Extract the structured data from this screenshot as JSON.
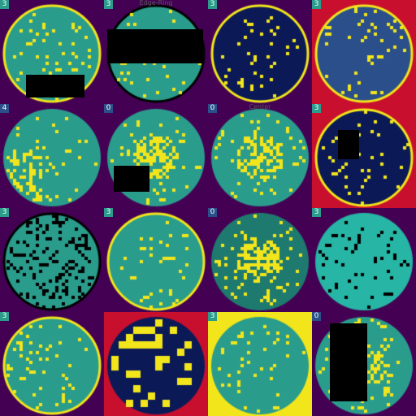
{
  "colors": {
    "purple": "#440154",
    "navy": "#0b1a57",
    "blue": "#2a4f8a",
    "teal": "#2a9c8c",
    "teal_dark": "#1e7a6e",
    "cyan": "#27b5a5",
    "yellow": "#f2e51c",
    "red": "#c8102e",
    "black": "#000000",
    "badge_teal": "#21a08a",
    "badge_blue": "#1a48c8"
  },
  "tiles": [
    {
      "badge": "3",
      "badge_color": "teal",
      "caption": "",
      "bg": "purple",
      "wafer": "teal",
      "defect": "yellow",
      "style": "sparse",
      "ring": "yellow"
    },
    {
      "badge": "3",
      "badge_color": "teal",
      "caption": "Edge-Ring",
      "bg": "purple",
      "wafer": "teal",
      "defect": "yellow",
      "style": "sparse",
      "ring": "black"
    },
    {
      "badge": "3",
      "badge_color": "teal",
      "caption": "",
      "bg": "purple",
      "wafer": "navy",
      "defect": "yellow",
      "style": "sparse",
      "ring": "yellow"
    },
    {
      "badge": "3",
      "badge_color": "teal",
      "caption": "",
      "bg": "red",
      "wafer": "blue",
      "defect": "yellow",
      "style": "sparse",
      "ring": "yellow"
    },
    {
      "badge": "4",
      "badge_color": "blue",
      "caption": "",
      "bg": "purple",
      "wafer": "teal",
      "defect": "yellow",
      "style": "cluster",
      "ring": "none"
    },
    {
      "badge": "0",
      "badge_color": "blue",
      "caption": "",
      "bg": "purple",
      "wafer": "teal",
      "defect": "yellow",
      "style": "center",
      "ring": "none"
    },
    {
      "badge": "0",
      "badge_color": "blue",
      "caption": "Center",
      "bg": "purple",
      "wafer": "teal",
      "defect": "yellow",
      "style": "center",
      "ring": "none"
    },
    {
      "badge": "3",
      "badge_color": "teal",
      "caption": "",
      "bg": "red",
      "wafer": "navy",
      "defect": "yellow",
      "style": "sparse",
      "ring": "yellow"
    },
    {
      "badge": "3",
      "badge_color": "teal",
      "caption": "",
      "bg": "purple",
      "wafer": "teal",
      "defect": "black",
      "style": "dense",
      "ring": "black"
    },
    {
      "badge": "3",
      "badge_color": "teal",
      "caption": "",
      "bg": "purple",
      "wafer": "teal",
      "defect": "yellow",
      "style": "sparse",
      "ring": "yellow"
    },
    {
      "badge": "0",
      "badge_color": "blue",
      "caption": "",
      "bg": "purple",
      "wafer": "teal_dark",
      "defect": "yellow",
      "style": "center",
      "ring": "none"
    },
    {
      "badge": "3",
      "badge_color": "teal",
      "caption": "",
      "bg": "purple",
      "wafer": "cyan",
      "defect": "black",
      "style": "sparse",
      "ring": "none"
    },
    {
      "badge": "3",
      "badge_color": "teal",
      "caption": "",
      "bg": "purple",
      "wafer": "teal",
      "defect": "yellow",
      "style": "sparse",
      "ring": "yellow"
    },
    {
      "badge": "",
      "badge_color": "teal",
      "caption": "",
      "bg": "red",
      "wafer": "navy",
      "defect": "yellow",
      "style": "blocks",
      "ring": "none"
    },
    {
      "badge": "3",
      "badge_color": "teal",
      "caption": "",
      "bg": "yellow",
      "wafer": "teal",
      "defect": "yellow",
      "style": "sparse",
      "ring": "none"
    },
    {
      "badge": "0",
      "badge_color": "blue",
      "caption": "",
      "bg": "purple",
      "wafer": "teal",
      "defect": "yellow",
      "style": "center",
      "ring": "none"
    }
  ]
}
